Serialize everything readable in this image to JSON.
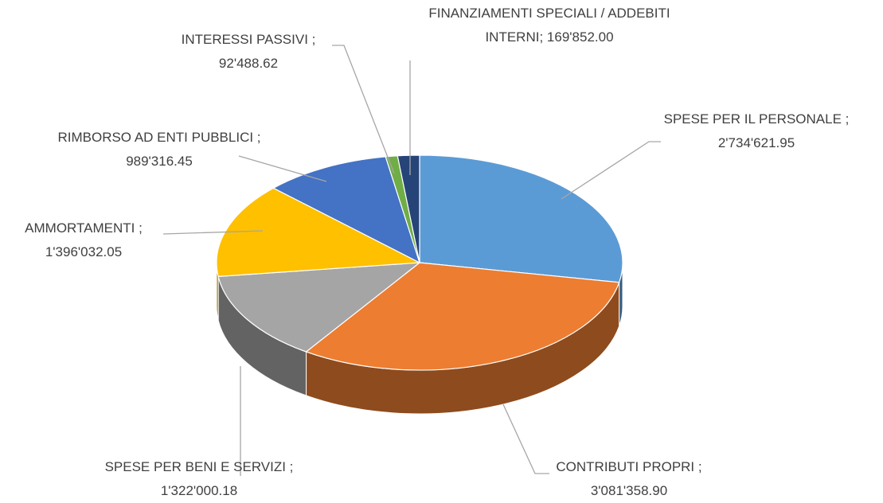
{
  "chart_data": {
    "type": "pie",
    "categories": [
      "SPESE PER IL PERSONALE ;",
      "CONTRIBUTI PROPRI ;",
      "SPESE PER BENI E SERVIZI ;",
      "AMMORTAMENTI ;",
      "RIMBORSO AD ENTI PUBBLICI ;",
      "INTERESSI PASSIVI ;",
      "FINANZIAMENTI SPECIALI / ADDEBITI INTERNI;"
    ],
    "values": [
      2734621.95,
      3081358.9,
      1322000.18,
      1396032.05,
      989316.45,
      92488.62,
      169852.0
    ],
    "value_labels": [
      "2'734'621.95",
      "3'081'358.90",
      "1'322'000.18",
      "1'396'032.05",
      "989'316.45",
      "92'488.62",
      "169'852.00"
    ],
    "colors": [
      "#5b9bd5",
      "#ed7d31",
      "#a5a5a5",
      "#ffc000",
      "#4472c4",
      "#70ad47",
      "#264478"
    ]
  }
}
